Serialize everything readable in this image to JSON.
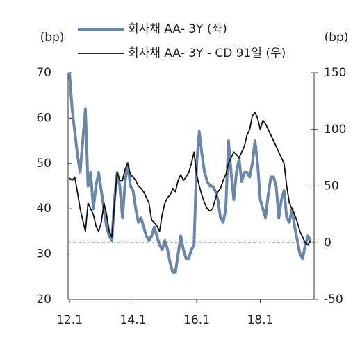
{
  "chart_data": {
    "type": "line",
    "y_label": "(bp)",
    "y2_label": "(bp)",
    "x": [
      "12.1",
      "12.2",
      "12.3",
      "12.4",
      "12.5",
      "12.6",
      "12.7",
      "12.8",
      "12.9",
      "12.10",
      "12.11",
      "12.12",
      "13.1",
      "13.2",
      "13.3",
      "13.4",
      "13.5",
      "13.6",
      "13.7",
      "13.8",
      "13.9",
      "13.10",
      "13.11",
      "13.12",
      "14.1",
      "14.2",
      "14.3",
      "14.4",
      "14.5",
      "14.6",
      "14.7",
      "14.8",
      "14.9",
      "14.10",
      "14.11",
      "14.12",
      "15.1",
      "15.2",
      "15.3",
      "15.4",
      "15.5",
      "15.6",
      "15.7",
      "15.8",
      "15.9",
      "15.10",
      "15.11",
      "15.12",
      "16.1",
      "16.2",
      "16.3",
      "16.4",
      "16.5",
      "16.6",
      "16.7",
      "16.8",
      "16.9",
      "16.10",
      "16.11",
      "16.12",
      "17.1",
      "17.2",
      "17.3",
      "17.4",
      "17.5",
      "17.6",
      "17.7",
      "17.8",
      "17.9",
      "17.10",
      "17.11",
      "17.12",
      "18.1",
      "18.2",
      "18.3",
      "18.4",
      "18.5",
      "18.6",
      "18.7",
      "18.8",
      "18.9",
      "18.10",
      "18.11",
      "18.12",
      "19.1",
      "19.2",
      "19.3",
      "19.4",
      "19.5",
      "19.6",
      "19.7",
      "19.8"
    ],
    "xticks": [
      "12.1",
      "14.1",
      "16.1",
      "18.1"
    ],
    "ylim": [
      20,
      70
    ],
    "yticks": [
      20,
      30,
      40,
      50,
      60,
      70
    ],
    "y2lim": [
      -50,
      150
    ],
    "y2ticks": [
      -50,
      0,
      50,
      100,
      150
    ],
    "reference_line": {
      "axis": "y2",
      "value": 0
    },
    "series": [
      {
        "name": "회사채 AA- 3Y (좌)",
        "color": "#6a86a8",
        "axis": "y",
        "values": [
          70,
          62,
          57,
          52,
          48,
          55,
          62,
          45,
          48,
          40,
          45,
          48,
          44,
          40,
          36,
          34,
          33,
          42,
          48,
          45,
          38,
          46,
          50,
          45,
          44,
          40,
          37,
          38,
          36,
          34,
          33,
          34,
          36,
          34,
          32,
          31,
          33,
          31,
          28,
          26,
          26,
          30,
          34,
          31,
          29,
          29,
          31,
          32,
          50,
          57,
          52,
          48,
          46,
          45,
          45,
          44,
          42,
          38,
          37,
          40,
          55,
          48,
          42,
          48,
          51,
          46,
          48,
          48,
          47,
          50,
          55,
          50,
          42,
          40,
          38,
          43,
          47,
          47,
          45,
          38,
          42,
          44,
          38,
          37,
          40,
          36,
          33,
          30,
          29,
          32,
          34,
          33
        ]
      },
      {
        "name": "회사채 AA- 3Y - CD 91일 (우)",
        "color": "#111111",
        "axis": "y2",
        "values": [
          57,
          55,
          58,
          45,
          30,
          20,
          10,
          35,
          30,
          25,
          15,
          10,
          18,
          35,
          25,
          10,
          5,
          35,
          62,
          55,
          55,
          65,
          70,
          60,
          58,
          55,
          50,
          48,
          45,
          40,
          35,
          20,
          18,
          15,
          10,
          25,
          35,
          40,
          42,
          48,
          45,
          55,
          60,
          55,
          58,
          62,
          70,
          80,
          60,
          50,
          42,
          35,
          30,
          28,
          30,
          38,
          45,
          48,
          55,
          60,
          70,
          75,
          80,
          78,
          75,
          80,
          85,
          95,
          100,
          112,
          115,
          110,
          100,
          108,
          105,
          100,
          95,
          90,
          85,
          80,
          75,
          70,
          50,
          35,
          30,
          25,
          18,
          10,
          5,
          0,
          -2,
          2
        ]
      }
    ]
  }
}
